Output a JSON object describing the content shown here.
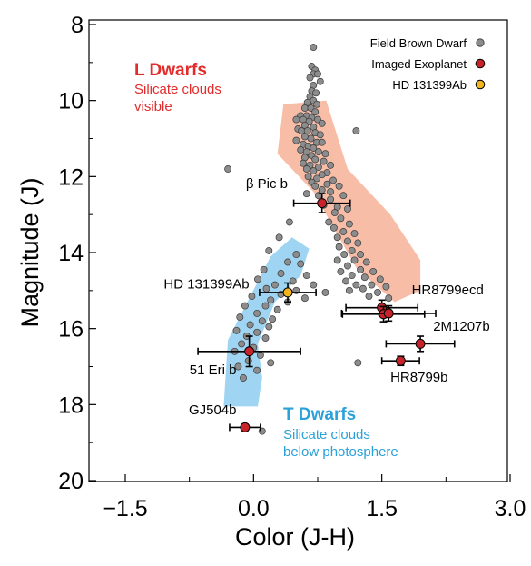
{
  "colors": {
    "field_marker": "#8c8c8c",
    "exoplanet_marker": "#c8232a",
    "highlight_marker": "#f2b51e",
    "l_band": "#f5a182",
    "t_band": "#7fc7ee",
    "l_text": "#e32b2b",
    "t_text": "#2aa1d8"
  },
  "chart_data": {
    "type": "scatter",
    "xlabel": "Color (J-H)",
    "ylabel": "Magnitude (J)",
    "xlim": [
      -2.1,
      3.3
    ],
    "ylim": [
      20.3,
      7.6
    ],
    "y_inverted": true,
    "x_ticks": [
      -1.5,
      0.0,
      1.5,
      3.0
    ],
    "x_tick_labels": [
      "−1.5",
      "0.0",
      "1.5",
      "3.0"
    ],
    "y_ticks": [
      8,
      10,
      12,
      14,
      16,
      18,
      20
    ],
    "y_tick_labels": [
      "8",
      "10",
      "12",
      "14",
      "16",
      "18",
      "20"
    ],
    "grid": false,
    "legend_position": "top-right",
    "legend": [
      {
        "label": "Field Brown Dwarf",
        "marker": "gray-circle"
      },
      {
        "label": "Imaged Exoplanet",
        "marker": "red-circle"
      },
      {
        "label": "HD 131399Ab",
        "marker": "yellow-circle"
      }
    ],
    "regions": [
      {
        "name": "L Dwarfs",
        "note_lines": [
          "Silicate clouds",
          "visible"
        ]
      },
      {
        "name": "T Dwarfs",
        "note_lines": [
          "Silicate clouds",
          "below photosphere"
        ]
      }
    ],
    "series": [
      {
        "name": "Field Brown Dwarf",
        "points": [
          [
            0.7,
            8.6
          ],
          [
            0.68,
            9.1
          ],
          [
            0.72,
            9.2
          ],
          [
            0.7,
            9.3
          ],
          [
            0.75,
            9.3
          ],
          [
            0.66,
            9.4
          ],
          [
            0.78,
            9.5
          ],
          [
            0.7,
            9.6
          ],
          [
            0.68,
            9.75
          ],
          [
            0.73,
            9.8
          ],
          [
            0.66,
            9.9
          ],
          [
            0.7,
            10.0
          ],
          [
            0.63,
            10.05
          ],
          [
            0.74,
            10.1
          ],
          [
            0.6,
            10.2
          ],
          [
            0.67,
            10.2
          ],
          [
            0.72,
            10.3
          ],
          [
            0.55,
            10.4
          ],
          [
            0.62,
            10.4
          ],
          [
            0.68,
            10.45
          ],
          [
            0.5,
            10.5
          ],
          [
            0.58,
            10.5
          ],
          [
            0.65,
            10.55
          ],
          [
            0.75,
            10.5
          ],
          [
            0.8,
            10.6
          ],
          [
            0.6,
            10.65
          ],
          [
            0.7,
            10.7
          ],
          [
            0.52,
            10.75
          ],
          [
            0.56,
            10.8
          ],
          [
            0.63,
            10.8
          ],
          [
            0.72,
            10.85
          ],
          [
            0.78,
            10.9
          ],
          [
            0.6,
            10.95
          ],
          [
            0.67,
            11.0
          ],
          [
            0.5,
            11.05
          ],
          [
            0.74,
            11.1
          ],
          [
            0.8,
            11.1
          ],
          [
            0.58,
            11.15
          ],
          [
            0.64,
            11.2
          ],
          [
            0.7,
            11.25
          ],
          [
            0.55,
            11.3
          ],
          [
            0.62,
            11.35
          ],
          [
            0.76,
            11.35
          ],
          [
            0.84,
            11.4
          ],
          [
            0.68,
            11.45
          ],
          [
            0.6,
            11.5
          ],
          [
            0.72,
            11.55
          ],
          [
            0.82,
            11.6
          ],
          [
            0.58,
            11.65
          ],
          [
            0.66,
            11.7
          ],
          [
            0.9,
            11.7
          ],
          [
            0.76,
            11.75
          ],
          [
            0.62,
            11.8
          ],
          [
            0.7,
            11.85
          ],
          [
            0.86,
            11.9
          ],
          [
            0.8,
            11.95
          ],
          [
            0.64,
            12.0
          ],
          [
            0.74,
            12.05
          ],
          [
            0.93,
            12.1
          ],
          [
            0.68,
            12.15
          ],
          [
            0.86,
            12.2
          ],
          [
            0.72,
            12.25
          ],
          [
            1.0,
            12.25
          ],
          [
            0.8,
            12.35
          ],
          [
            0.9,
            12.4
          ],
          [
            0.62,
            12.45
          ],
          [
            0.76,
            12.5
          ],
          [
            1.05,
            12.5
          ],
          [
            0.9,
            12.6
          ],
          [
            0.82,
            12.75
          ],
          [
            0.98,
            12.8
          ],
          [
            1.1,
            12.85
          ],
          [
            0.95,
            12.95
          ],
          [
            1.02,
            13.1
          ],
          [
            0.88,
            13.2
          ],
          [
            1.12,
            13.25
          ],
          [
            0.94,
            13.35
          ],
          [
            1.05,
            13.45
          ],
          [
            1.18,
            13.5
          ],
          [
            0.98,
            13.6
          ],
          [
            1.1,
            13.7
          ],
          [
            1.22,
            13.75
          ],
          [
            1.0,
            13.85
          ],
          [
            1.15,
            13.95
          ],
          [
            1.06,
            14.05
          ],
          [
            1.25,
            14.05
          ],
          [
            0.98,
            14.2
          ],
          [
            1.18,
            14.2
          ],
          [
            1.32,
            14.25
          ],
          [
            1.1,
            14.35
          ],
          [
            1.25,
            14.45
          ],
          [
            1.02,
            14.5
          ],
          [
            1.4,
            14.5
          ],
          [
            1.15,
            14.6
          ],
          [
            1.3,
            14.65
          ],
          [
            1.48,
            14.7
          ],
          [
            1.08,
            14.75
          ],
          [
            1.2,
            14.85
          ],
          [
            1.38,
            14.85
          ],
          [
            1.55,
            14.9
          ],
          [
            1.28,
            14.95
          ],
          [
            1.12,
            15.0
          ],
          [
            1.45,
            15.05
          ],
          [
            1.35,
            15.15
          ],
          [
            1.58,
            15.2
          ],
          [
            1.5,
            15.45
          ],
          [
            -0.3,
            11.8
          ],
          [
            1.2,
            10.8
          ],
          [
            0.42,
            13.2
          ],
          [
            0.3,
            13.6
          ],
          [
            0.18,
            13.95
          ],
          [
            0.5,
            14.05
          ],
          [
            0.4,
            14.25
          ],
          [
            0.12,
            14.45
          ],
          [
            0.55,
            14.3
          ],
          [
            0.32,
            14.55
          ],
          [
            0.62,
            14.6
          ],
          [
            0.05,
            14.7
          ],
          [
            0.46,
            14.75
          ],
          [
            0.25,
            14.85
          ],
          [
            0.7,
            14.85
          ],
          [
            0.15,
            14.95
          ],
          [
            0.5,
            15.0
          ],
          [
            0.84,
            15.05
          ],
          [
            -0.02,
            15.15
          ],
          [
            0.32,
            15.1
          ],
          [
            0.2,
            15.25
          ],
          [
            0.6,
            15.2
          ],
          [
            0.4,
            15.3
          ],
          [
            -0.1,
            15.4
          ],
          [
            0.14,
            15.4
          ],
          [
            0.28,
            15.5
          ],
          [
            0.04,
            15.6
          ],
          [
            -0.16,
            15.7
          ],
          [
            0.22,
            15.75
          ],
          [
            0.1,
            15.8
          ],
          [
            -0.04,
            15.9
          ],
          [
            0.18,
            15.95
          ],
          [
            -0.2,
            16.05
          ],
          [
            0.04,
            16.1
          ],
          [
            -0.08,
            16.2
          ],
          [
            0.14,
            16.25
          ],
          [
            -0.14,
            16.4
          ],
          [
            0.0,
            16.5
          ],
          [
            -0.22,
            16.6
          ],
          [
            0.08,
            16.7
          ],
          [
            -0.06,
            16.85
          ],
          [
            0.2,
            16.9
          ],
          [
            -0.18,
            17.0
          ],
          [
            0.04,
            17.1
          ],
          [
            -0.12,
            17.3
          ],
          [
            1.22,
            16.9
          ],
          [
            0.1,
            18.7
          ]
        ]
      },
      {
        "name": "Imaged Exoplanet",
        "points": [
          {
            "label": "β Pic b",
            "x": 0.8,
            "y": 12.7,
            "xerr": 0.33,
            "yerr": 0.25
          },
          {
            "label": "HR8799ecd",
            "x": 1.5,
            "y": 15.45,
            "xerr": 0.42,
            "yerr": 0.2
          },
          {
            "label": "HR8799ecd",
            "x": 1.52,
            "y": 15.62,
            "xerr": 0.48,
            "yerr": 0.2
          },
          {
            "label": "HR8799ecd",
            "x": 1.58,
            "y": 15.6,
            "xerr": 0.55,
            "yerr": 0.2
          },
          {
            "label": "2M1207b",
            "x": 1.95,
            "y": 16.4,
            "xerr": 0.4,
            "yerr": 0.2
          },
          {
            "label": "HR8799b",
            "x": 1.72,
            "y": 16.85,
            "xerr": 0.22,
            "yerr": 0.12
          },
          {
            "label": "51 Eri b",
            "x": -0.05,
            "y": 16.6,
            "xerr": 0.6,
            "yerr": 0.4
          },
          {
            "label": "GJ504b",
            "x": -0.1,
            "y": 18.6,
            "xerr": 0.18,
            "yerr": 0.08
          }
        ]
      },
      {
        "name": "HD 131399Ab",
        "points": [
          {
            "label": "HD 131399Ab",
            "x": 0.4,
            "y": 15.05,
            "xerr": 0.33,
            "yerr": 0.25
          }
        ]
      }
    ],
    "annotations": [
      {
        "text": "β Pic b",
        "x": 0.4,
        "y": 12.3
      },
      {
        "text": "HD 131399Ab",
        "x": -0.05,
        "y": 14.95
      },
      {
        "text": "HR8799ecd",
        "x": 1.85,
        "y": 15.1
      },
      {
        "text": "2M1207b",
        "x": 2.1,
        "y": 16.05
      },
      {
        "text": "51 Eri b",
        "x": -0.2,
        "y": 17.2
      },
      {
        "text": "HR8799b",
        "x": 1.6,
        "y": 17.4
      },
      {
        "text": "GJ504b",
        "x": -0.2,
        "y": 18.25
      }
    ]
  }
}
